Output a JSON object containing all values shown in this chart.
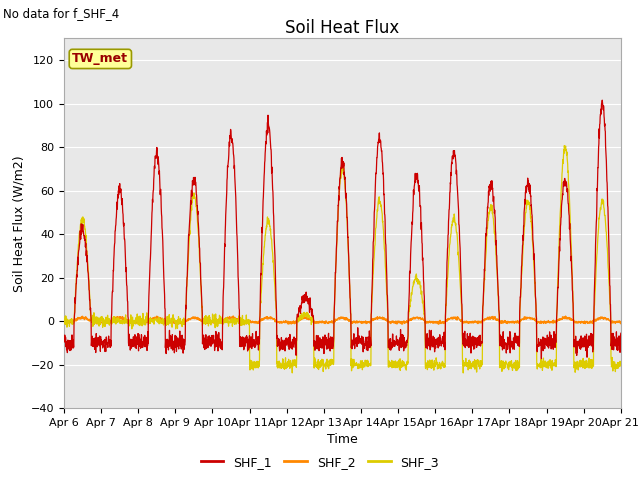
{
  "title": "Soil Heat Flux",
  "top_left_note": "No data for f_SHF_4",
  "ylabel": "Soil Heat Flux (W/m2)",
  "xlabel": "Time",
  "ylim": [
    -40,
    130
  ],
  "yticks": [
    -40,
    -20,
    0,
    20,
    40,
    60,
    80,
    100,
    120
  ],
  "background_color": "#e8e8e8",
  "legend_items": [
    "SHF_1",
    "SHF_2",
    "SHF_3"
  ],
  "legend_colors": [
    "#cc0000",
    "#ff8800",
    "#ddcc00"
  ],
  "station_label": "TW_met",
  "station_box_facecolor": "#ffff99",
  "station_box_edgecolor": "#aaaaaa",
  "x_tick_labels": [
    "Apr 6",
    "Apr 7",
    "Apr 8",
    "Apr 9",
    "Apr 10",
    "Apr 11",
    "Apr 12",
    "Apr 13",
    "Apr 14",
    "Apr 15",
    "Apr 16",
    "Apr 17",
    "Apr 18",
    "Apr 19",
    "Apr 20",
    "Apr 21"
  ],
  "n_days": 15,
  "points_per_day": 144,
  "shf1_day_amps": [
    42,
    60,
    77,
    65,
    86,
    90,
    11,
    73,
    85,
    67,
    78,
    63,
    64,
    65,
    100
  ],
  "shf3_day_amps": [
    47,
    0,
    0,
    58,
    0,
    46,
    3,
    70,
    55,
    20,
    47,
    52,
    55,
    80,
    55
  ],
  "shf3_night_vals": [
    0,
    0,
    0,
    0,
    0,
    -20,
    -20,
    -20,
    -20,
    -20,
    -20,
    -20,
    -20,
    -20,
    -20
  ],
  "title_fontsize": 12,
  "axis_label_fontsize": 9,
  "tick_fontsize": 8
}
